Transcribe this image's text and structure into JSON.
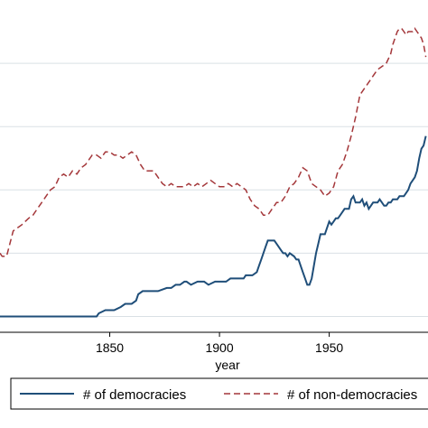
{
  "chart_data": {
    "type": "line",
    "xlabel": "year",
    "ylabel": "",
    "title": "",
    "xlim": [
      1800,
      1995
    ],
    "ylim": [
      -5,
      100
    ],
    "x_ticks": [
      1850,
      1900,
      1950
    ],
    "x_tick_labels": [
      "1850",
      "1900",
      "1950"
    ],
    "y_gridlines": [
      0,
      20,
      40,
      60,
      80
    ],
    "grid": true,
    "legend_position": "bottom",
    "series": [
      {
        "name": "# of democracies",
        "color": "#1f4e79",
        "style": "solid",
        "x": [
          1800,
          1844,
          1845,
          1848,
          1849,
          1852,
          1855,
          1857,
          1860,
          1862,
          1863,
          1865,
          1868,
          1872,
          1876,
          1878,
          1880,
          1882,
          1884,
          1885,
          1887,
          1890,
          1893,
          1895,
          1898,
          1900,
          1903,
          1905,
          1907,
          1909,
          1911,
          1912,
          1913,
          1915,
          1917,
          1918,
          1919,
          1920,
          1921,
          1922,
          1923,
          1924,
          1925,
          1926,
          1928,
          1929,
          1930,
          1931,
          1932,
          1934,
          1935,
          1936,
          1937,
          1938,
          1939,
          1940,
          1941,
          1942,
          1943,
          1944,
          1945,
          1946,
          1947,
          1948,
          1949,
          1950,
          1951,
          1952,
          1953,
          1954,
          1955,
          1956,
          1957,
          1958,
          1959,
          1960,
          1961,
          1962,
          1963,
          1964,
          1965,
          1966,
          1967,
          1968,
          1969,
          1970,
          1971,
          1972,
          1973,
          1974,
          1975,
          1976,
          1977,
          1978,
          1979,
          1980,
          1981,
          1982,
          1983,
          1984,
          1985,
          1986,
          1987,
          1988,
          1989,
          1990,
          1991,
          1992,
          1993,
          1994
        ],
        "y": [
          0,
          0,
          1,
          2,
          2,
          2,
          3,
          4,
          4,
          5,
          7,
          8,
          8,
          8,
          9,
          9,
          10,
          10,
          11,
          11,
          10,
          11,
          11,
          10,
          11,
          11,
          11,
          12,
          12,
          12,
          12,
          13,
          13,
          13,
          14,
          16,
          18,
          20,
          22,
          24,
          24,
          24,
          24,
          23,
          21,
          20,
          20,
          19,
          20,
          19,
          18,
          18,
          16,
          14,
          12,
          10,
          10,
          12,
          16,
          20,
          23,
          26,
          26,
          26,
          28,
          30,
          29,
          30,
          31,
          31,
          32,
          33,
          34,
          34,
          34,
          37,
          38,
          36,
          36,
          36,
          37,
          35,
          36,
          34,
          35,
          36,
          36,
          36,
          37,
          36,
          35,
          35,
          36,
          36,
          37,
          37,
          37,
          38,
          38,
          38,
          39,
          40,
          42,
          43,
          44,
          46,
          50,
          53,
          54,
          57
        ]
      },
      {
        "name": "# of non-democracies",
        "color": "#a4373a",
        "style": "dashed",
        "x": [
          1800,
          1801,
          1803,
          1806,
          1810,
          1813,
          1815,
          1817,
          1819,
          1821,
          1823,
          1825,
          1827,
          1829,
          1831,
          1833,
          1835,
          1837,
          1839,
          1840,
          1842,
          1844,
          1846,
          1848,
          1850,
          1852,
          1854,
          1856,
          1858,
          1860,
          1862,
          1864,
          1866,
          1868,
          1870,
          1872,
          1874,
          1876,
          1878,
          1880,
          1882,
          1884,
          1886,
          1888,
          1890,
          1892,
          1894,
          1896,
          1898,
          1900,
          1902,
          1904,
          1906,
          1908,
          1910,
          1912,
          1914,
          1916,
          1918,
          1920,
          1922,
          1924,
          1926,
          1928,
          1930,
          1932,
          1934,
          1936,
          1938,
          1940,
          1942,
          1944,
          1946,
          1948,
          1950,
          1952,
          1954,
          1956,
          1958,
          1960,
          1962,
          1964,
          1966,
          1968,
          1970,
          1972,
          1974,
          1976,
          1978,
          1979,
          1980,
          1981,
          1982,
          1983,
          1984,
          1985,
          1986,
          1987,
          1988,
          1989,
          1990,
          1991,
          1992,
          1993,
          1994
        ],
        "y": [
          20,
          19,
          19,
          27,
          29,
          31,
          32,
          34,
          36,
          38,
          40,
          41,
          44,
          45,
          44,
          46,
          45,
          47,
          48,
          49,
          51,
          51,
          50,
          52,
          52,
          51,
          51,
          50,
          51,
          52,
          51,
          48,
          46,
          46,
          46,
          44,
          42,
          41,
          42,
          41,
          41,
          41,
          42,
          41,
          42,
          41,
          42,
          43,
          42,
          41,
          41,
          42,
          41,
          42,
          41,
          40,
          37,
          35,
          34,
          32,
          32,
          34,
          36,
          36,
          38,
          41,
          42,
          44,
          47,
          46,
          42,
          41,
          40,
          38,
          39,
          41,
          46,
          48,
          52,
          57,
          63,
          70,
          72,
          74,
          76,
          78,
          79,
          80,
          83,
          86,
          88,
          90,
          91,
          91,
          90,
          89,
          90,
          90,
          90,
          91,
          90,
          89,
          88,
          86,
          82
        ]
      }
    ]
  },
  "legend": {
    "items": [
      {
        "label": "# of democracies",
        "color": "#1f4e79",
        "style": "solid"
      },
      {
        "label": "# of non-democracies",
        "color": "#a4373a",
        "style": "dashed"
      }
    ]
  },
  "colors": {
    "grid": "#d9e0e5",
    "axis": "#000000",
    "legend_border": "#000000"
  }
}
